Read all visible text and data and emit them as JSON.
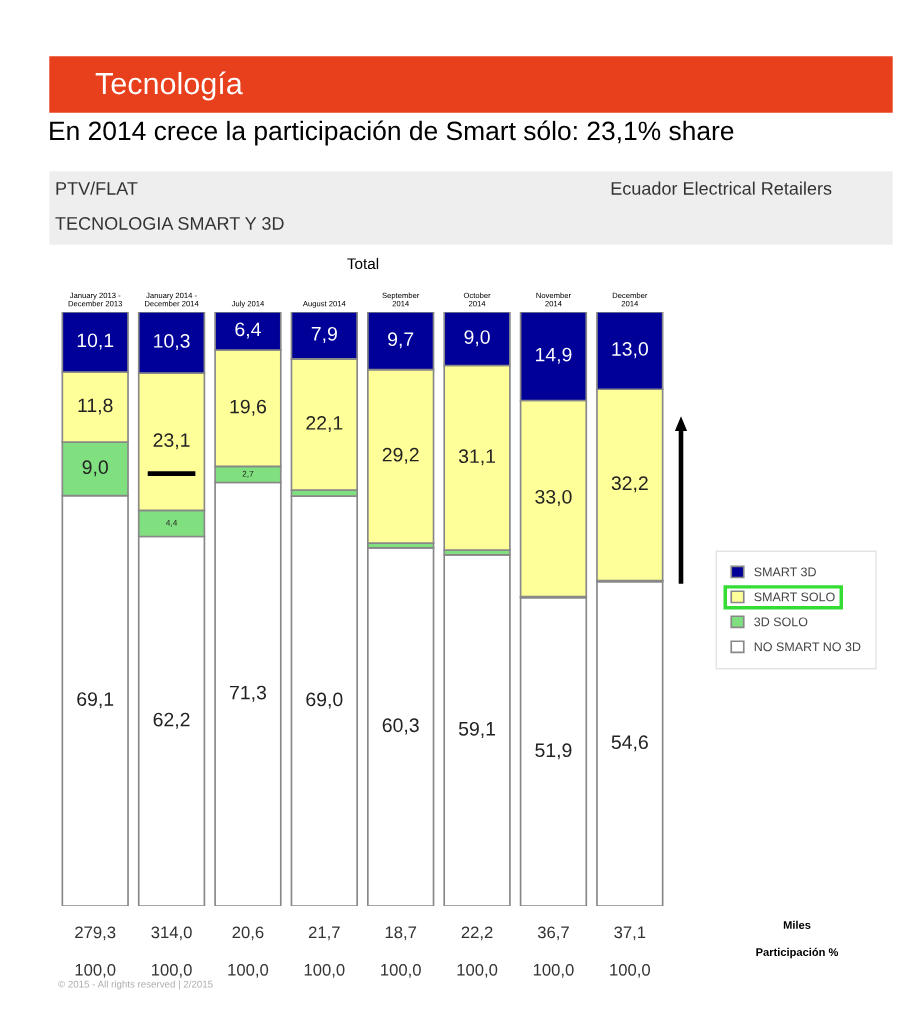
{
  "chart_data": {
    "type": "bar",
    "stacked": true,
    "title": "Tecnología",
    "subtitle": "En 2014 crece la participación de Smart sólo: 23,1% share",
    "categories": [
      "January 2013 -\nDecember 2013",
      "January 2014 -\nDecember 2014",
      "July 2014",
      "August 2014",
      "September\n2014",
      "October\n2014",
      "November\n2014",
      "December\n2014"
    ],
    "series": [
      {
        "name": "NO SMART NO 3D",
        "color": "#ffffff",
        "values": [
          69.1,
          62.2,
          71.3,
          69.0,
          60.3,
          59.1,
          51.9,
          54.6
        ],
        "value_labels": [
          "69,1",
          "62,2",
          "71,3",
          "69,0",
          "60,3",
          "59,1",
          "51,9",
          "54,6"
        ]
      },
      {
        "name": "3D SOLO",
        "color": "#80e080",
        "values": [
          9.0,
          4.4,
          2.7,
          1.0,
          0.8,
          0.8,
          0.2,
          0.2
        ],
        "value_labels": [
          "9,0",
          "4,4",
          "2,7",
          null,
          null,
          null,
          null,
          null
        ]
      },
      {
        "name": "SMART SOLO",
        "color": "#ffff99",
        "values": [
          11.8,
          23.1,
          19.6,
          22.1,
          29.2,
          31.1,
          33.0,
          32.2
        ],
        "value_labels": [
          "11,8",
          "23,1",
          "19,6",
          "22,1",
          "29,2",
          "31,1",
          "33,0",
          "32,2"
        ]
      },
      {
        "name": "SMART 3D",
        "color": "#000099",
        "values": [
          10.1,
          10.3,
          6.4,
          7.9,
          9.7,
          9.0,
          14.9,
          13.0
        ],
        "value_labels": [
          "10,1",
          "10,3",
          "6,4",
          "7,9",
          "9,7",
          "9,0",
          "14,9",
          "13,0"
        ]
      }
    ],
    "ylim": [
      0,
      100
    ],
    "tick_labels": "x",
    "legend": "right",
    "annotations": [
      "PTV/FLAT",
      "TECNOLOGIA SMART Y 3D",
      "Ecuador Electrical Retailers",
      "Total",
      "Miles",
      "Participación %",
      "© 2015 - All rights reserved | 2/2015",
      "279,3",
      "314,0",
      "20,6",
      "21,7",
      "18,7",
      "22,2",
      "36,7",
      "37,1",
      "100,0",
      "100,0",
      "100,0",
      "100,0",
      "100,0",
      "100,0",
      "100,0",
      "100,0"
    ]
  }
}
